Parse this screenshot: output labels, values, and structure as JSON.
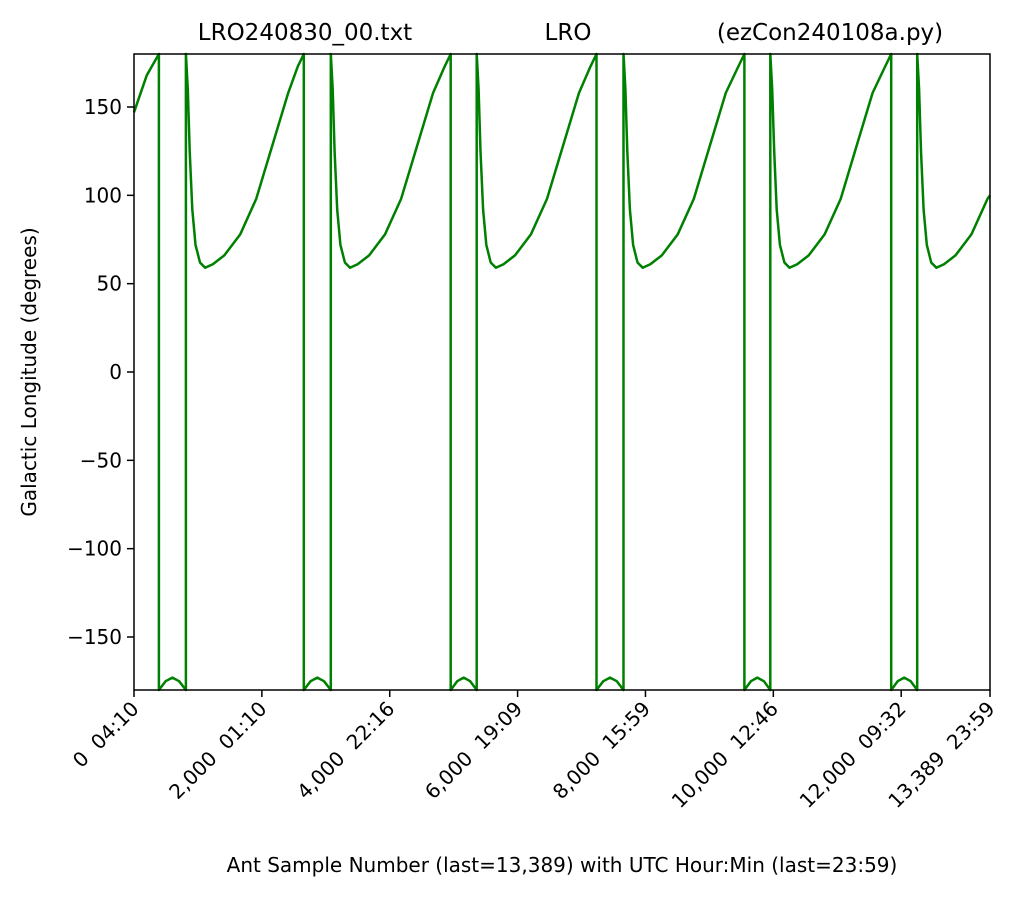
{
  "chart_data": {
    "type": "line",
    "title_parts": [
      "LRO240830_00.txt",
      "LRO",
      "(ezCon240108a.py)"
    ],
    "xlabel": "Ant Sample Number (last=13,389) with UTC Hour:Min (last=23:59)",
    "ylabel": "Galactic Longitude (degrees)",
    "xlim": [
      0,
      13389
    ],
    "ylim": [
      -180,
      180
    ],
    "xticks": [
      {
        "value": 0,
        "label": "0  04:10"
      },
      {
        "value": 2000,
        "label": "2,000  01:10"
      },
      {
        "value": 4000,
        "label": "4,000  22:16"
      },
      {
        "value": 6000,
        "label": "6,000  19:09"
      },
      {
        "value": 8000,
        "label": "8,000  15:59"
      },
      {
        "value": 10000,
        "label": "10,000  12:46"
      },
      {
        "value": 12000,
        "label": "12,000  09:32"
      },
      {
        "value": 13389,
        "label": "13,389  23:59"
      }
    ],
    "yticks": [
      {
        "value": -150,
        "label": "−150"
      },
      {
        "value": -100,
        "label": "−100"
      },
      {
        "value": -50,
        "label": "−50"
      },
      0,
      50,
      100,
      150
    ],
    "series": [
      {
        "color": "#008000",
        "x": [
          0,
          200,
          390,
          390,
          495,
          601,
          706,
          812,
          812,
          842,
          872,
          912,
          962,
          1032,
          1112,
          1232,
          1412,
          1662,
          1912,
          2162,
          2412,
          2562,
          2656,
          2656,
          2762,
          2867,
          2972,
          3078,
          3078,
          3108,
          3138,
          3178,
          3228,
          3298,
          3378,
          3498,
          3678,
          3928,
          4178,
          4428,
          4678,
          4859,
          4953,
          4953,
          5055,
          5157,
          5258,
          5360,
          5360,
          5390,
          5420,
          5460,
          5510,
          5580,
          5660,
          5780,
          5960,
          6210,
          6460,
          6710,
          6960,
          7140,
          7234,
          7234,
          7340,
          7445,
          7551,
          7656,
          7656,
          7686,
          7716,
          7756,
          7806,
          7876,
          7956,
          8076,
          8256,
          8506,
          8756,
          9006,
          9256,
          9453,
          9547,
          9547,
          9649,
          9750,
          9852,
          9953,
          9953,
          9983,
          10013,
          10053,
          10103,
          10173,
          10253,
          10373,
          10553,
          10803,
          11053,
          11303,
          11553,
          11750,
          11844,
          11844,
          11946,
          12047,
          12149,
          12250,
          12250,
          12280,
          12310,
          12350,
          12400,
          12470,
          12550,
          12670,
          12850,
          13100,
          13350,
          13389
        ],
        "values": [
          147,
          168,
          180,
          -180,
          -175,
          -173,
          -175,
          -180,
          180,
          160,
          125,
          92,
          72,
          62,
          59,
          61,
          66,
          78,
          98,
          128,
          158,
          173,
          180,
          -180,
          -175,
          -173,
          -175,
          -180,
          180,
          160,
          125,
          92,
          72,
          62,
          59,
          61,
          66,
          78,
          98,
          128,
          158,
          173,
          180,
          -180,
          -175,
          -173,
          -175,
          -180,
          180,
          160,
          125,
          92,
          72,
          62,
          59,
          61,
          66,
          78,
          98,
          128,
          158,
          173,
          180,
          -180,
          -175,
          -173,
          -175,
          -180,
          180,
          160,
          125,
          92,
          72,
          62,
          59,
          61,
          66,
          78,
          98,
          128,
          158,
          173,
          180,
          -180,
          -175,
          -173,
          -175,
          -180,
          180,
          160,
          125,
          92,
          72,
          62,
          59,
          61,
          66,
          78,
          98,
          128,
          158,
          173,
          180,
          -180,
          -175,
          -173,
          -175,
          -180,
          180,
          160,
          125,
          92,
          72,
          62,
          59,
          61,
          66,
          78,
          98,
          100
        ]
      }
    ]
  }
}
